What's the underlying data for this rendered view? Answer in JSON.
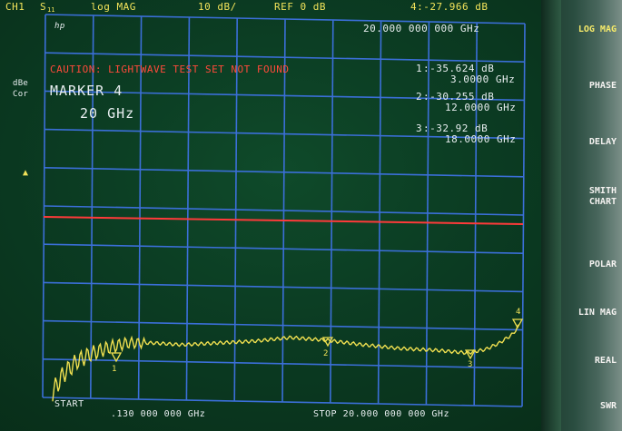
{
  "header": {
    "channel": "CH1",
    "parameter": "S",
    "parameter_sub": "11",
    "format": "log MAG",
    "scale": "10 dB/",
    "ref": "REF 0 dB",
    "active_marker": "4:-27.966 dB"
  },
  "marker_freq_top": "20.000 000 000 GHz",
  "hp_logo": "hp",
  "caution": "CAUTION: LIGHTWAVE TEST SET NOT FOUND",
  "left_labels": {
    "dbe": "dBe",
    "cor": "Cor"
  },
  "marker_info": {
    "title": "MARKER 4",
    "freq": "20 GHz"
  },
  "markers": [
    {
      "num": "1",
      "value": ":-35.624 dB",
      "freq": "3.0000 GHz"
    },
    {
      "num": "2",
      "value": ":-30.255 dB",
      "freq": "12.0000 GHz"
    },
    {
      "num": "3",
      "value": ":-32.92 dB",
      "freq": "18.0000 GHz"
    }
  ],
  "trace_marker_labels": [
    "1",
    "2",
    "3",
    "4"
  ],
  "footer": {
    "start_label": "START",
    "start_value": ".130 000 000 GHz",
    "stop": "STOP 20.000 000 000 GHz"
  },
  "softkeys": [
    "LOG MAG",
    "PHASE",
    "DELAY",
    "SMITH\nCHART",
    "POLAR",
    "LIN MAG",
    "REAL",
    "SWR"
  ],
  "colors": {
    "grid": "#3b6fd8",
    "trace": "#f0e050",
    "ref_line": "#ff3a3a",
    "marker_text": "#e8eef0"
  }
}
